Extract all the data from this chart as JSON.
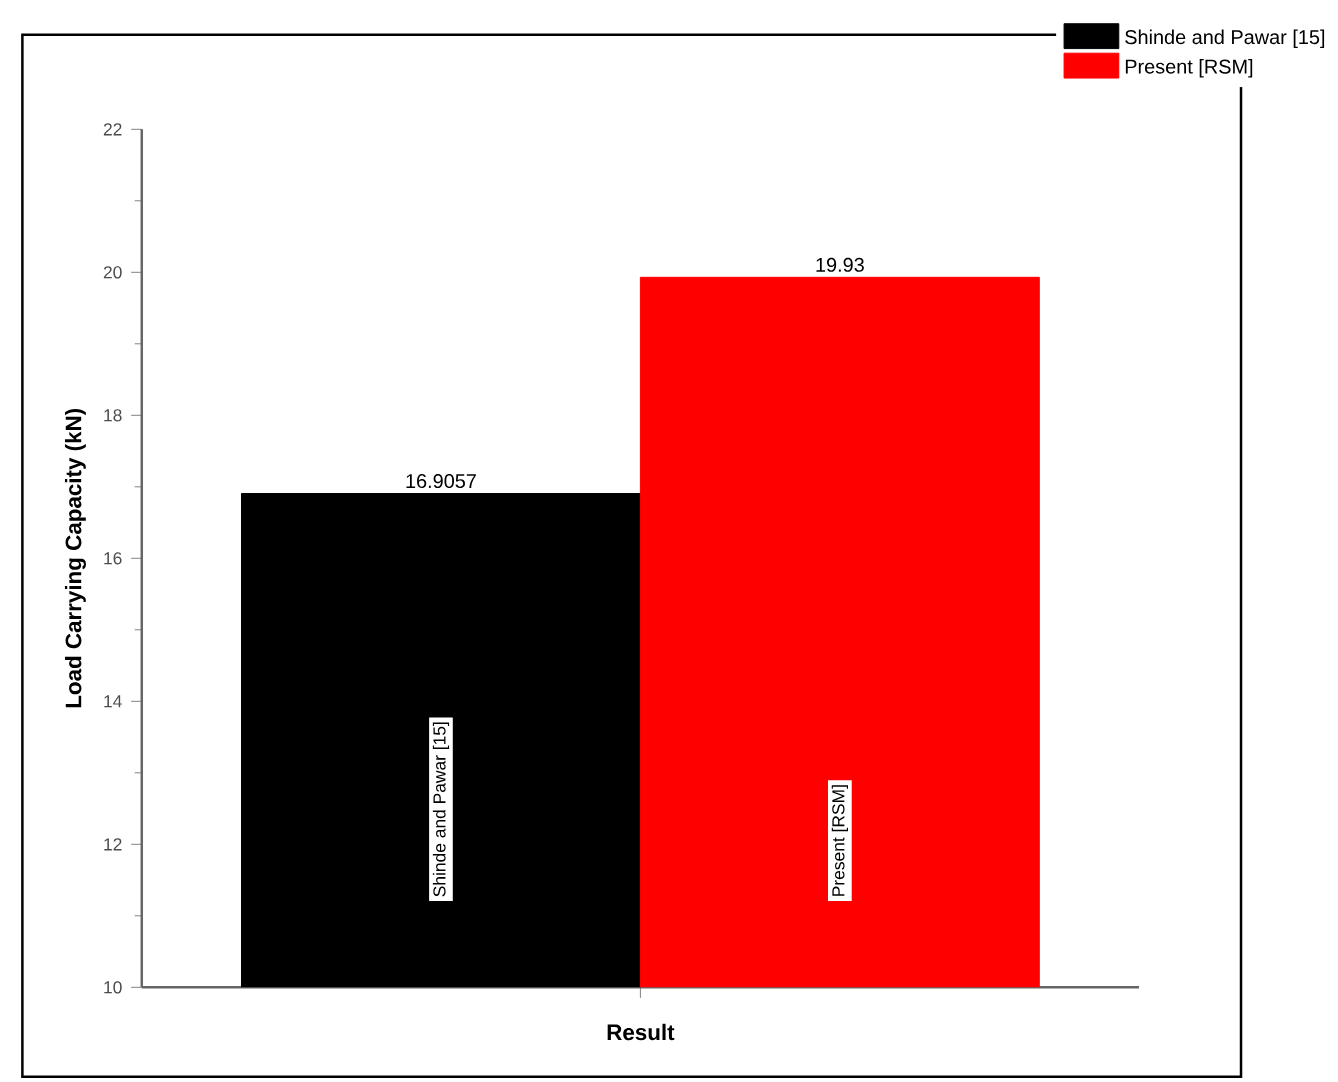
{
  "chart_data": {
    "type": "bar",
    "xlabel": "Result",
    "ylabel": "Load Carrying Capacity (kN)",
    "categories": [
      null
    ],
    "series": [
      {
        "name": "Shinde and Pawar [15]",
        "color": "#000000",
        "values": [
          16.9057
        ]
      },
      {
        "name": "Present [RSM]",
        "color": "#ff0000",
        "values": [
          19.93
        ]
      }
    ],
    "ylim": [
      10,
      22
    ],
    "yticks": [
      10,
      12,
      14,
      16,
      18,
      20,
      22
    ],
    "data_labels": true,
    "legend": "top right",
    "tick_labels": "y",
    "grid": false
  }
}
